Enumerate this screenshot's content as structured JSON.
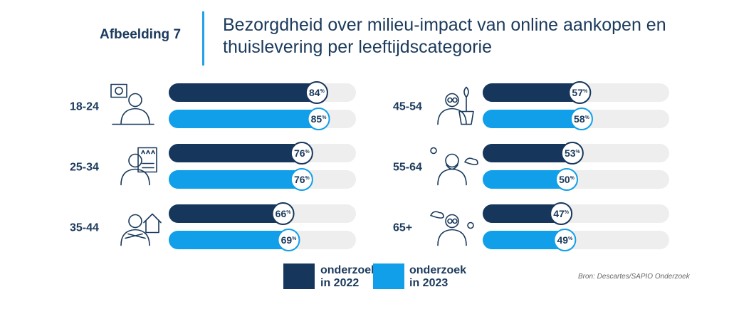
{
  "header": {
    "figure_label": "Afbeelding 7",
    "title": "Bezorgdheid over milieu-impact van online aankopen en thuislevering per leeftijdscategorie"
  },
  "colors": {
    "series_2022": "#16365c",
    "series_2023": "#109fe8",
    "track": "#eeeeee",
    "text": "#1b3a5c"
  },
  "chart_data": {
    "type": "bar",
    "orientation": "horizontal",
    "categories": [
      "18-24",
      "25-34",
      "35-44",
      "45-54",
      "55-64",
      "65+"
    ],
    "series": [
      {
        "name": "onderzoek in 2022",
        "values": [
          84,
          76,
          66,
          57,
          53,
          47
        ]
      },
      {
        "name": "onderzoek in 2023",
        "values": [
          85,
          76,
          69,
          58,
          50,
          49
        ]
      }
    ],
    "value_suffix": "%",
    "xlim": [
      0,
      100
    ],
    "category_icons": [
      "presenter-icon",
      "person-rating-icon",
      "person-house-icon",
      "elderly-woman-plant-icon",
      "elderly-man-icon",
      "elderly-woman-icon"
    ]
  },
  "legend": {
    "items": [
      {
        "line1": "onderzoek",
        "line2": "in 2022"
      },
      {
        "line1": "onderzoek",
        "line2": "in 2023"
      }
    ]
  },
  "source": "Bron: Descartes/SAPIO Onderzoek"
}
